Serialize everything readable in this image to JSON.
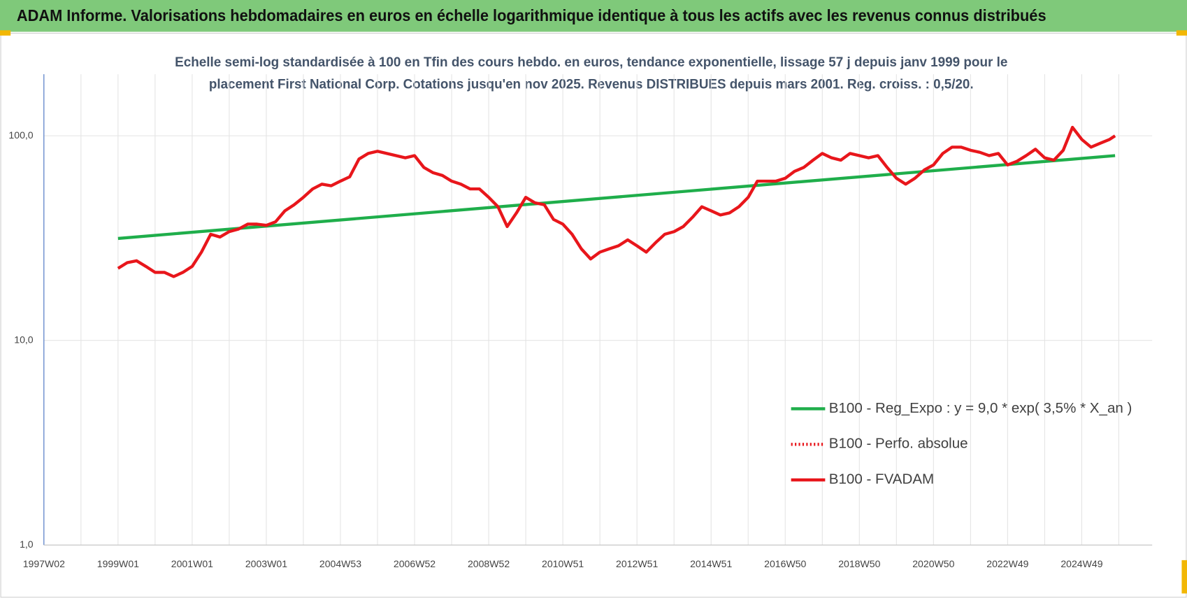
{
  "chart_data": {
    "type": "line",
    "header": "ADAM Informe. Valorisations hebdomadaires en euros en échelle logarithmique identique à tous les actifs avec les revenus connus distribués",
    "subtitle": [
      "Echelle semi-log standardisée à 100 en Tfin des cours hebdo. en euros, tendance exponentielle, lissage 57 j depuis janv 1999 pour le",
      "placement First National Corp. Cotations jusqu'en nov 2025.  Revenus DISTRIBUES depuis mars 2001. Reg. croiss. : 0,5/20."
    ],
    "log_y": true,
    "grid": true,
    "xlim": [
      1997,
      2026.9
    ],
    "xticks": [
      {
        "value": 1997,
        "label": "1997W02"
      },
      {
        "value": 1999,
        "label": "1999W01"
      },
      {
        "value": 2001,
        "label": "2001W01"
      },
      {
        "value": 2003,
        "label": "2003W01"
      },
      {
        "value": 2005,
        "label": "2004W53"
      },
      {
        "value": 2007,
        "label": "2006W52"
      },
      {
        "value": 2009,
        "label": "2008W52"
      },
      {
        "value": 2011,
        "label": "2010W51"
      },
      {
        "value": 2013,
        "label": "2012W51"
      },
      {
        "value": 2015,
        "label": "2014W51"
      },
      {
        "value": 2017,
        "label": "2016W50"
      },
      {
        "value": 2019,
        "label": "2018W50"
      },
      {
        "value": 2021,
        "label": "2020W50"
      },
      {
        "value": 2023,
        "label": "2022W49"
      },
      {
        "value": 2025,
        "label": "2024W49"
      }
    ],
    "minor_xticks": [
      1998,
      2000,
      2002,
      2004,
      2006,
      2008,
      2010,
      2012,
      2014,
      2016,
      2018,
      2020,
      2022,
      2024,
      2026
    ],
    "ylim": [
      1,
      200
    ],
    "yticks": [
      {
        "value": 1,
        "label": "1,0"
      },
      {
        "value": 10,
        "label": "10,0"
      },
      {
        "value": 100,
        "label": "100,0"
      }
    ],
    "series": [
      {
        "name": "B100 - Reg_Expo : y = 9,0 * exp( 3,5% *  X_an )",
        "color": "#1fae4b",
        "style": "solid",
        "x": [
          1999,
          2025.9
        ],
        "values": [
          31.5,
          80
        ]
      },
      {
        "name": "B100 - Perfo. absolue",
        "color": "#e8161b",
        "style": "dotted",
        "x": [],
        "values": []
      },
      {
        "name": "B100 - FVADAM",
        "color": "#e8161b",
        "style": "solid",
        "x": [
          1999,
          1999.25,
          1999.5,
          1999.75,
          2000,
          2000.25,
          2000.5,
          2000.75,
          2001,
          2001.25,
          2001.5,
          2001.75,
          2002,
          2002.25,
          2002.5,
          2002.75,
          2003,
          2003.25,
          2003.5,
          2003.75,
          2004,
          2004.25,
          2004.5,
          2004.75,
          2005,
          2005.25,
          2005.5,
          2005.75,
          2006,
          2006.25,
          2006.5,
          2006.75,
          2007,
          2007.25,
          2007.5,
          2007.75,
          2008,
          2008.25,
          2008.5,
          2008.75,
          2009,
          2009.25,
          2009.5,
          2009.75,
          2010,
          2010.25,
          2010.5,
          2010.75,
          2011,
          2011.25,
          2011.5,
          2011.75,
          2012,
          2012.25,
          2012.5,
          2012.75,
          2013,
          2013.25,
          2013.5,
          2013.75,
          2014,
          2014.25,
          2014.5,
          2014.75,
          2015,
          2015.25,
          2015.5,
          2015.75,
          2016,
          2016.25,
          2016.5,
          2016.75,
          2017,
          2017.25,
          2017.5,
          2017.75,
          2018,
          2018.25,
          2018.5,
          2018.75,
          2019,
          2019.25,
          2019.5,
          2019.75,
          2020,
          2020.25,
          2020.5,
          2020.75,
          2021,
          2021.25,
          2021.5,
          2021.75,
          2022,
          2022.25,
          2022.5,
          2022.75,
          2023,
          2023.25,
          2023.5,
          2023.75,
          2024,
          2024.25,
          2024.5,
          2024.75,
          2025,
          2025.25,
          2025.5,
          2025.75,
          2025.9
        ],
        "values": [
          22.5,
          24,
          24.5,
          23,
          21.5,
          21.5,
          20.5,
          21.5,
          23,
          27,
          33,
          32,
          34,
          35,
          37,
          37,
          36.5,
          38,
          43,
          46,
          50,
          55,
          58,
          57,
          60,
          63,
          77,
          82,
          84,
          82,
          80,
          78,
          80,
          70,
          66,
          64,
          60,
          58,
          55,
          55,
          50,
          45,
          36,
          42,
          50,
          47,
          46,
          39,
          37,
          33,
          28,
          25,
          27,
          28,
          29,
          31,
          29,
          27,
          30,
          33,
          34,
          36,
          40,
          45,
          43,
          41,
          42,
          45,
          50,
          60,
          60,
          60,
          62,
          67,
          70,
          76,
          82,
          78,
          76,
          82,
          80,
          78,
          80,
          70,
          62,
          58,
          62,
          68,
          72,
          82,
          88,
          88,
          85,
          83,
          80,
          82,
          72,
          75,
          80,
          86,
          78,
          76,
          85,
          110,
          96,
          88,
          92,
          96,
          100
        ]
      }
    ]
  }
}
